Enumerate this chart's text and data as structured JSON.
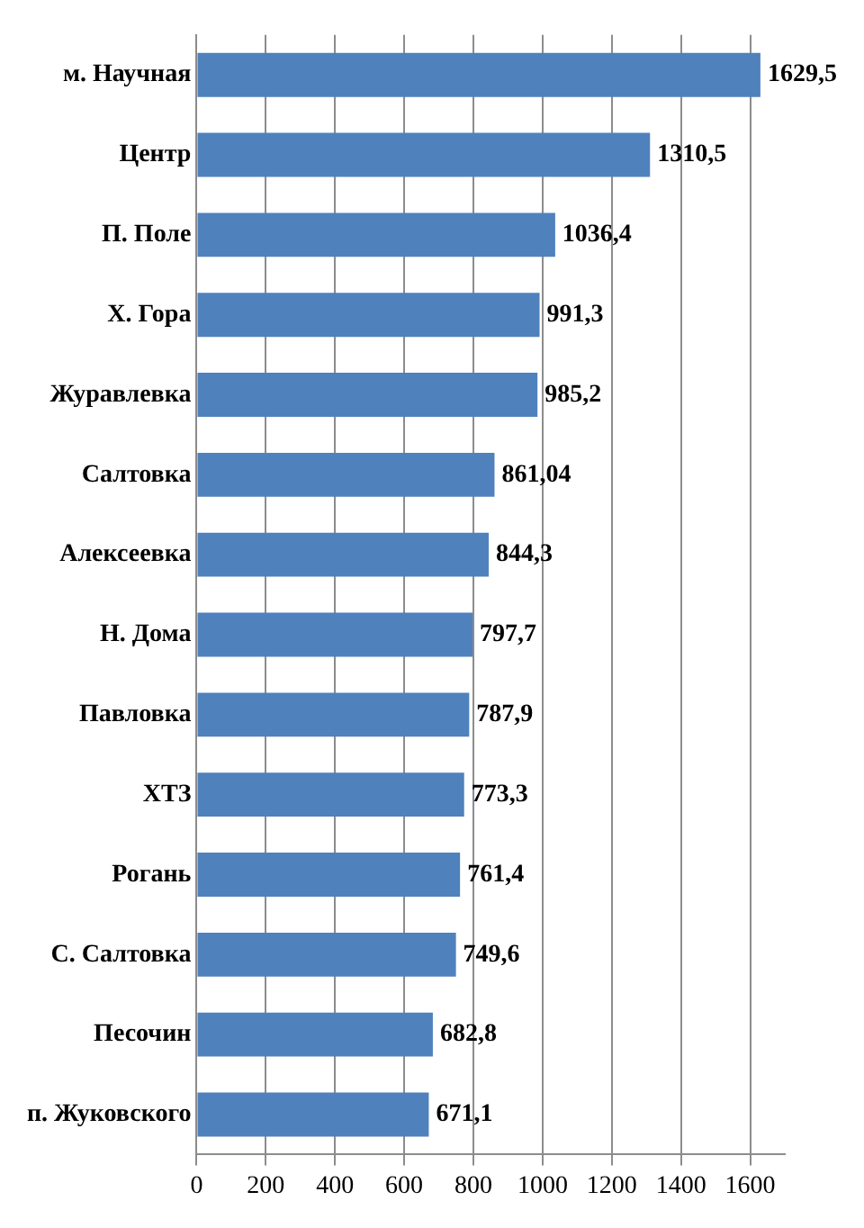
{
  "chart_data": {
    "type": "bar",
    "orientation": "horizontal",
    "categories": [
      "м. Научная",
      "Центр",
      "П. Поле",
      "Х. Гора",
      "Журавлевка",
      "Салтовка",
      "Алексеевка",
      "Н. Дома",
      "Павловка",
      "ХТЗ",
      "Рогань",
      "С. Салтовка",
      "Песочин",
      "п. Жуковского"
    ],
    "values": [
      1629.5,
      1310.5,
      1036.4,
      991.3,
      985.2,
      861.04,
      844.3,
      797.7,
      787.9,
      773.3,
      761.4,
      749.6,
      682.8,
      671.1
    ],
    "value_labels": [
      "1629,5",
      "1310,5",
      "1036,4",
      "991,3",
      "985,2",
      "861,04",
      "844,3",
      "797,7",
      "787,9",
      "773,3",
      "761,4",
      "749,6",
      "682,8",
      "671,1"
    ],
    "color": "#4f81bd",
    "xlim": [
      0,
      1700
    ],
    "xticks": [
      0,
      200,
      400,
      600,
      800,
      1000,
      1200,
      1400,
      1600
    ],
    "grid": "x",
    "legend": false
  }
}
